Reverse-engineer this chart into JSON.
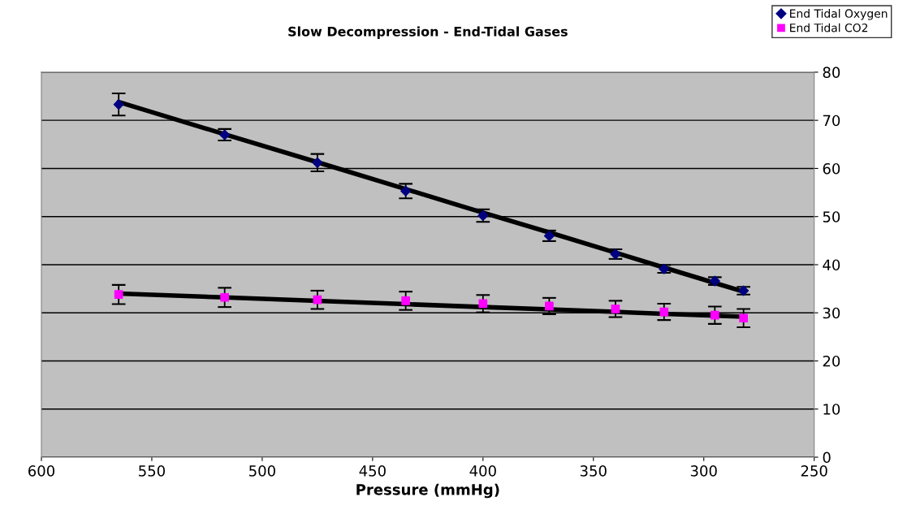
{
  "chart_data": {
    "type": "scatter",
    "title": "Slow Decompression - End-Tidal Gases",
    "xlabel": "Pressure (mmHg)",
    "x": [
      565,
      517,
      475,
      435,
      400,
      370,
      340,
      318,
      295,
      282
    ],
    "series": [
      {
        "name": "End Tidal Oxygen",
        "color": "#000080",
        "marker": "diamond",
        "values": [
          73.3,
          67.0,
          61.2,
          55.3,
          50.2,
          46.0,
          42.2,
          39.1,
          36.6,
          34.6
        ],
        "errors": [
          2.3,
          1.2,
          1.8,
          1.5,
          1.3,
          1.1,
          1.0,
          0.8,
          0.8,
          0.8
        ]
      },
      {
        "name": "End Tidal CO2",
        "color": "#ff00ff",
        "marker": "square",
        "values": [
          33.8,
          33.2,
          32.7,
          32.5,
          31.9,
          31.4,
          30.8,
          30.2,
          29.5,
          28.9
        ],
        "errors": [
          2.0,
          2.0,
          1.9,
          1.9,
          1.8,
          1.7,
          1.7,
          1.7,
          1.8,
          1.9
        ]
      },
      {
        "type": "line",
        "color": "#000000",
        "values": [
          73.8,
          67.1,
          61.3,
          55.7,
          50.8,
          46.7,
          42.5,
          39.4,
          36.2,
          34.4
        ]
      },
      {
        "type": "line",
        "color": "#000000",
        "values": [
          34.0,
          33.2,
          32.5,
          31.8,
          31.2,
          30.7,
          30.2,
          29.8,
          29.4,
          29.2
        ]
      }
    ],
    "xlim": [
      600,
      250
    ],
    "xticks": [
      600,
      550,
      500,
      450,
      400,
      350,
      300,
      250
    ],
    "ylim": [
      0,
      80
    ],
    "yticks": [
      0,
      10,
      20,
      30,
      40,
      50,
      60,
      70,
      80
    ],
    "grid": "y",
    "legend": "top right"
  }
}
